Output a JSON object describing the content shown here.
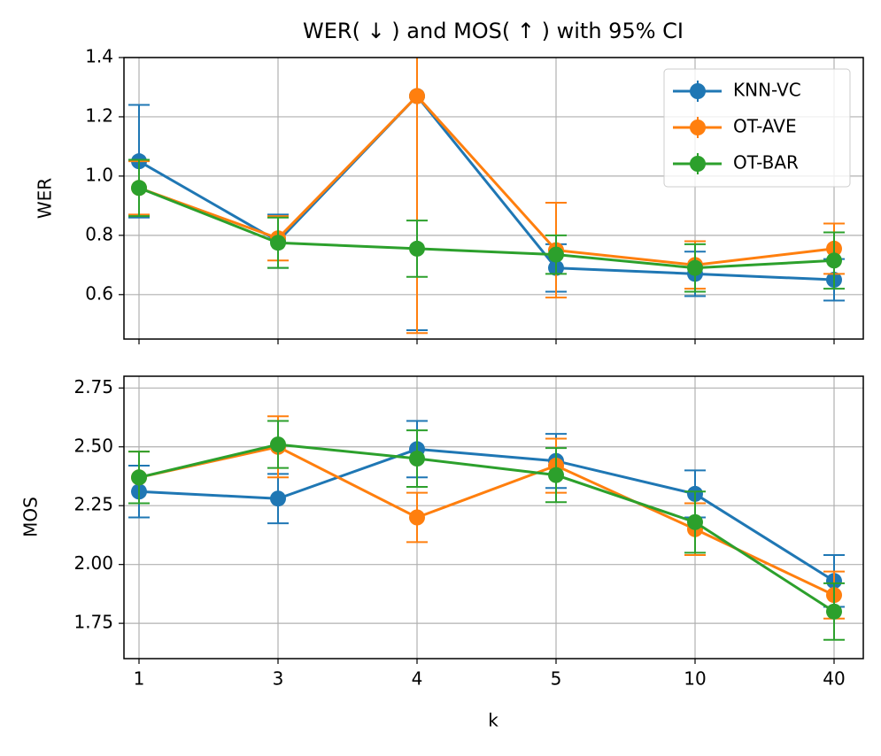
{
  "chart_data": [
    {
      "type": "line",
      "title": "WER( ↓ ) and MOS( ↑ ) with 95% CI",
      "ylabel": "WER",
      "ylim": [
        0.45,
        1.4
      ],
      "yticks": [
        0.6,
        0.8,
        {
          "value": 1,
          "label": "1.0"
        },
        1.2,
        1.4
      ],
      "grid": true,
      "legend": "upper right",
      "series": [
        {
          "name": "KNN-VC",
          "color": "#1f77b4",
          "values": [
            1.05,
            0.78,
            1.27,
            0.69,
            0.67,
            0.65
          ],
          "errors": [
            0.19,
            0.09,
            0.79,
            0.08,
            0.075,
            0.07
          ]
        },
        {
          "name": "OT-AVE",
          "color": "#ff7f0e",
          "values": [
            0.96,
            0.79,
            1.27,
            0.75,
            0.7,
            0.755
          ],
          "errors": [
            0.09,
            0.075,
            0.8,
            0.16,
            0.08,
            0.085
          ]
        },
        {
          "name": "OT-BAR",
          "color": "#2ca02c",
          "values": [
            0.96,
            0.775,
            0.755,
            0.735,
            0.69,
            0.715
          ],
          "errors": [
            0.095,
            0.085,
            0.095,
            0.065,
            0.08,
            0.095
          ]
        }
      ]
    },
    {
      "type": "line",
      "ylabel": "MOS",
      "xlabel": "k",
      "categories": [
        "1",
        "3",
        "4",
        "5",
        "10",
        "40"
      ],
      "ylim": [
        1.6,
        2.8
      ],
      "yticks": [
        1.75,
        {
          "value": 2,
          "label": "2.00"
        },
        2.25,
        {
          "value": 2.5,
          "label": "2.50"
        },
        2.75
      ],
      "grid": true,
      "series": [
        {
          "color": "#1f77b4",
          "values": [
            2.31,
            2.28,
            2.49,
            2.44,
            2.3,
            1.93
          ],
          "errors": [
            0.11,
            0.105,
            0.12,
            0.115,
            0.1,
            0.11
          ]
        },
        {
          "color": "#ff7f0e",
          "values": [
            2.37,
            2.5,
            2.2,
            2.42,
            2.15,
            1.87
          ],
          "errors": [
            0.11,
            0.13,
            0.105,
            0.115,
            0.11,
            0.1
          ]
        },
        {
          "color": "#2ca02c",
          "values": [
            2.37,
            2.51,
            2.45,
            2.38,
            2.18,
            1.8
          ],
          "errors": [
            0.11,
            0.1,
            0.12,
            0.115,
            0.13,
            0.12
          ]
        }
      ]
    }
  ]
}
